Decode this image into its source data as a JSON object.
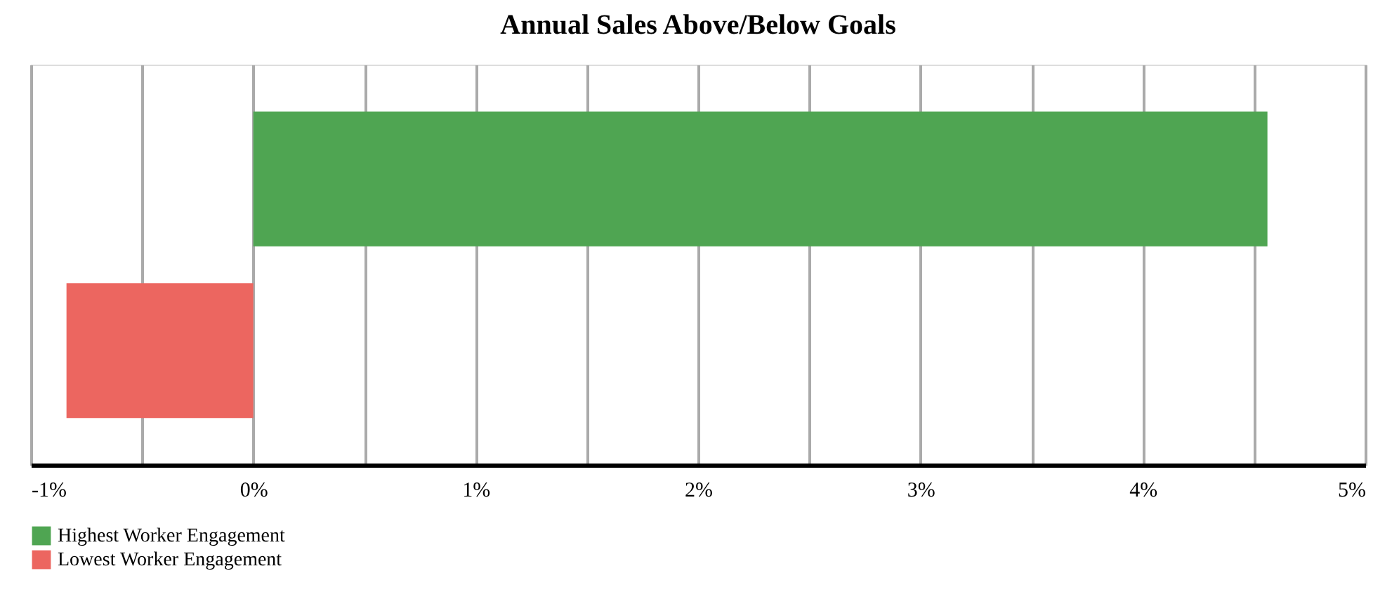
{
  "chart_data": {
    "type": "bar",
    "orientation": "horizontal",
    "title": "Annual Sales Above/Below Goals",
    "categories": [
      null
    ],
    "series": [
      {
        "name": "Highest Worker Engagement",
        "color": "#4fa552",
        "values": [
          4.56
        ]
      },
      {
        "name": "Lowest Worker Engagement",
        "color": "#ec6660",
        "values": [
          -0.84
        ]
      }
    ],
    "xlim": [
      -1,
      5
    ],
    "xticks": [
      {
        "value": -1,
        "label": "-1%"
      },
      {
        "value": -0.5,
        "label": null
      },
      {
        "value": 0,
        "label": "0%"
      },
      {
        "value": 0.5,
        "label": null
      },
      {
        "value": 1,
        "label": "1%"
      },
      {
        "value": 1.5,
        "label": null
      },
      {
        "value": 2,
        "label": "2%"
      },
      {
        "value": 2.5,
        "label": null
      },
      {
        "value": 3,
        "label": "3%"
      },
      {
        "value": 3.5,
        "label": null
      },
      {
        "value": 4,
        "label": "4%"
      },
      {
        "value": 4.5,
        "label": null
      },
      {
        "value": 5,
        "label": "5%"
      }
    ],
    "grid": "x",
    "legend": "bottom",
    "tick_labels": "x"
  }
}
